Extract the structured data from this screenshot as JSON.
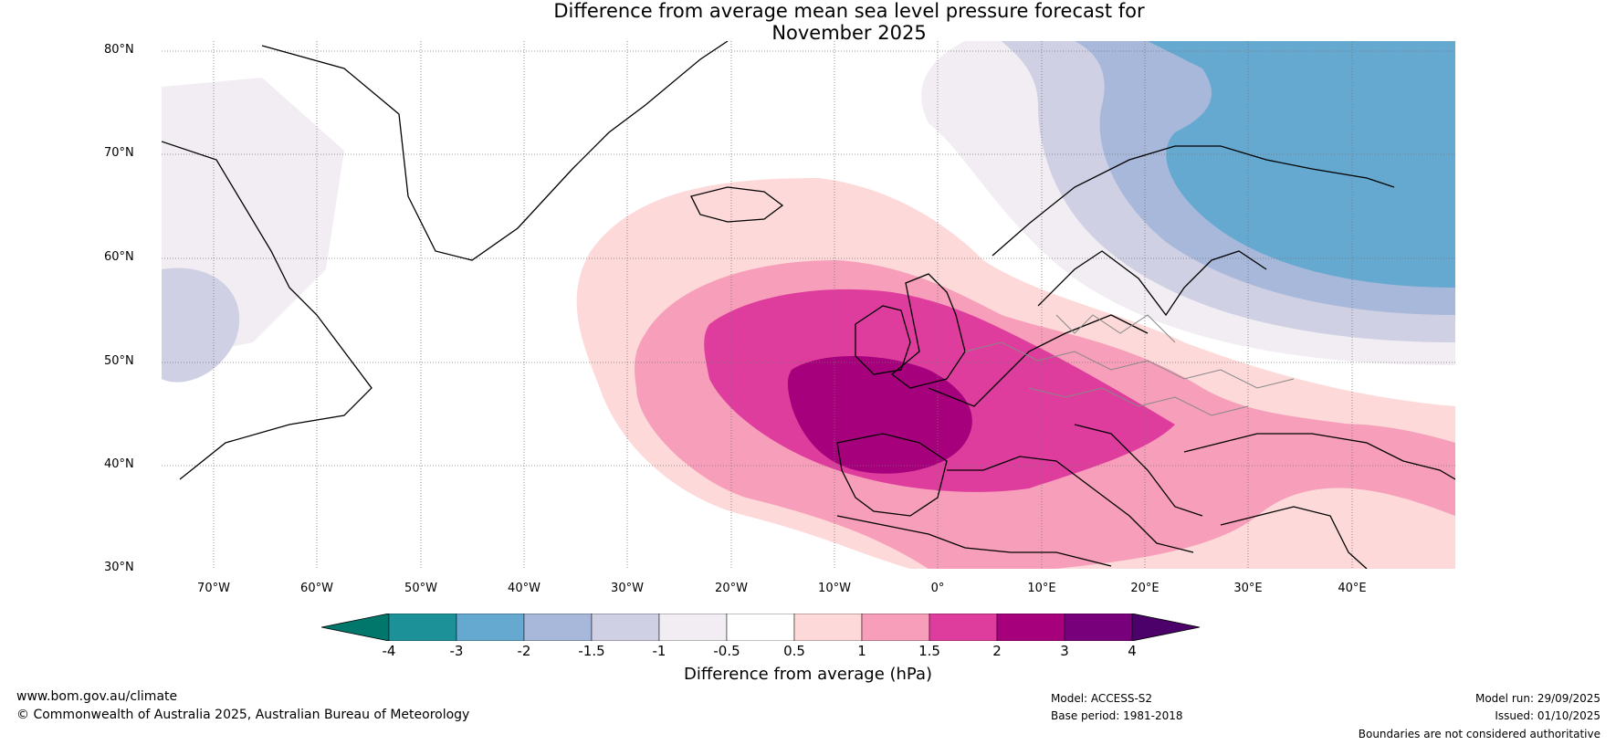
{
  "title_line1": "Difference from average mean sea level pressure forecast for",
  "title_line2": "November 2025",
  "lat_labels": [
    "80°N",
    "70°N",
    "60°N",
    "50°N",
    "40°N",
    "30°N"
  ],
  "lon_labels": [
    "70°W",
    "60°W",
    "50°W",
    "40°W",
    "30°W",
    "20°W",
    "10°W",
    "0°",
    "10°E",
    "20°E",
    "30°E",
    "40°E"
  ],
  "colorbar": {
    "ticks": [
      "-4",
      "-3",
      "-2",
      "-1.5",
      "-1",
      "-0.5",
      "0.5",
      "1",
      "1.5",
      "2",
      "3",
      "4"
    ],
    "colors": [
      "#00776a",
      "#1d9198",
      "#65a9d0",
      "#a8b8da",
      "#cfd0e4",
      "#f1edf3",
      "#ffffff",
      "#fdd9d9",
      "#f79fba",
      "#df3d9e",
      "#a7007d",
      "#78007a",
      "#4b006a"
    ],
    "label": "Difference from average (hPa)"
  },
  "footer": {
    "site": "www.bom.gov.au/climate",
    "copyright": "© Commonwealth of Australia 2025, Australian Bureau of Meteorology",
    "model": "Model: ACCESS-S2",
    "base_period": "Base period: 1981-2018",
    "model_run": "Model run: 29/09/2025",
    "issued": "Issued: 01/10/2025",
    "disclaimer": "Boundaries are not considered authoritative"
  }
}
